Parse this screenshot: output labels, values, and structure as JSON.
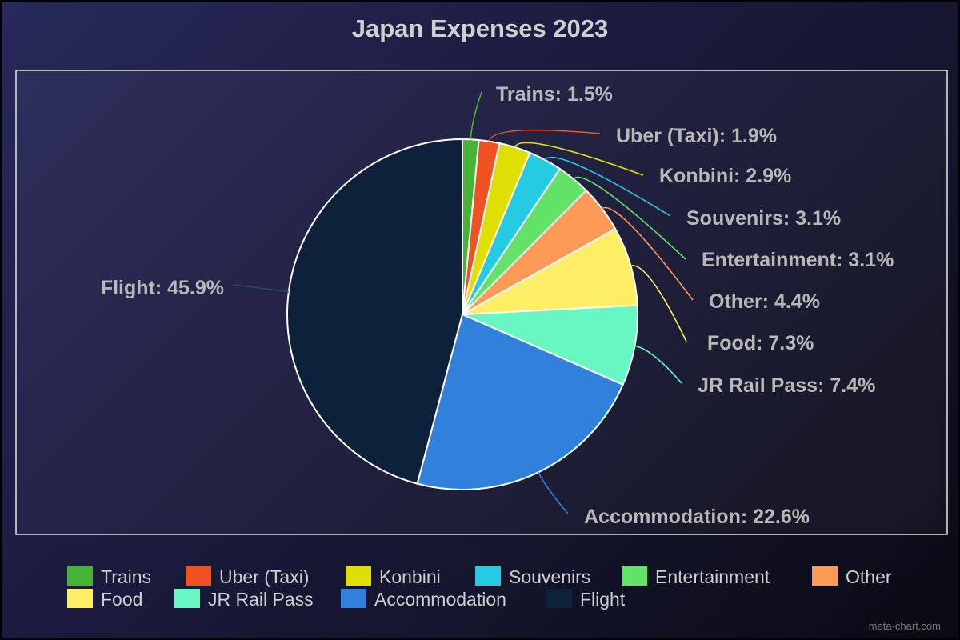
{
  "chart_data": {
    "type": "pie",
    "title": "Japan Expenses 2023",
    "slices": [
      {
        "name": "Trains",
        "value": 1.5,
        "label": "Trains: 1.5%",
        "color": "#47b334"
      },
      {
        "name": "Uber (Taxi)",
        "value": 1.9,
        "label": "Uber (Taxi): 1.9%",
        "color": "#ef5220"
      },
      {
        "name": "Konbini",
        "value": 2.9,
        "label": "Konbini: 2.9%",
        "color": "#dfdf06"
      },
      {
        "name": "Souvenirs",
        "value": 3.1,
        "label": "Souvenirs: 3.1%",
        "color": "#26cbe3"
      },
      {
        "name": "Entertainment",
        "value": 3.1,
        "label": "Entertainment: 3.1%",
        "color": "#62e266"
      },
      {
        "name": "Other",
        "value": 4.4,
        "label": "Other: 4.4%",
        "color": "#fd9a58"
      },
      {
        "name": "Food",
        "value": 7.3,
        "label": "Food: 7.3%",
        "color": "#feee66"
      },
      {
        "name": "JR Rail Pass",
        "value": 7.4,
        "label": "JR Rail Pass: 7.4%",
        "color": "#68f6c3"
      },
      {
        "name": "Accommodation",
        "value": 22.6,
        "label": "Accommodation: 22.6%",
        "color": "#3080dc"
      },
      {
        "name": "Flight",
        "value": 45.9,
        "label": "Flight: 45.9%",
        "color": "#0d213b"
      }
    ],
    "legend": [
      "Trains",
      "Uber (Taxi)",
      "Konbini",
      "Souvenirs",
      "Entertainment",
      "Other",
      "Food",
      "JR Rail Pass",
      "Accommodation",
      "Flight"
    ],
    "legend_position": "bottom"
  },
  "watermark": "meta-chart.com"
}
